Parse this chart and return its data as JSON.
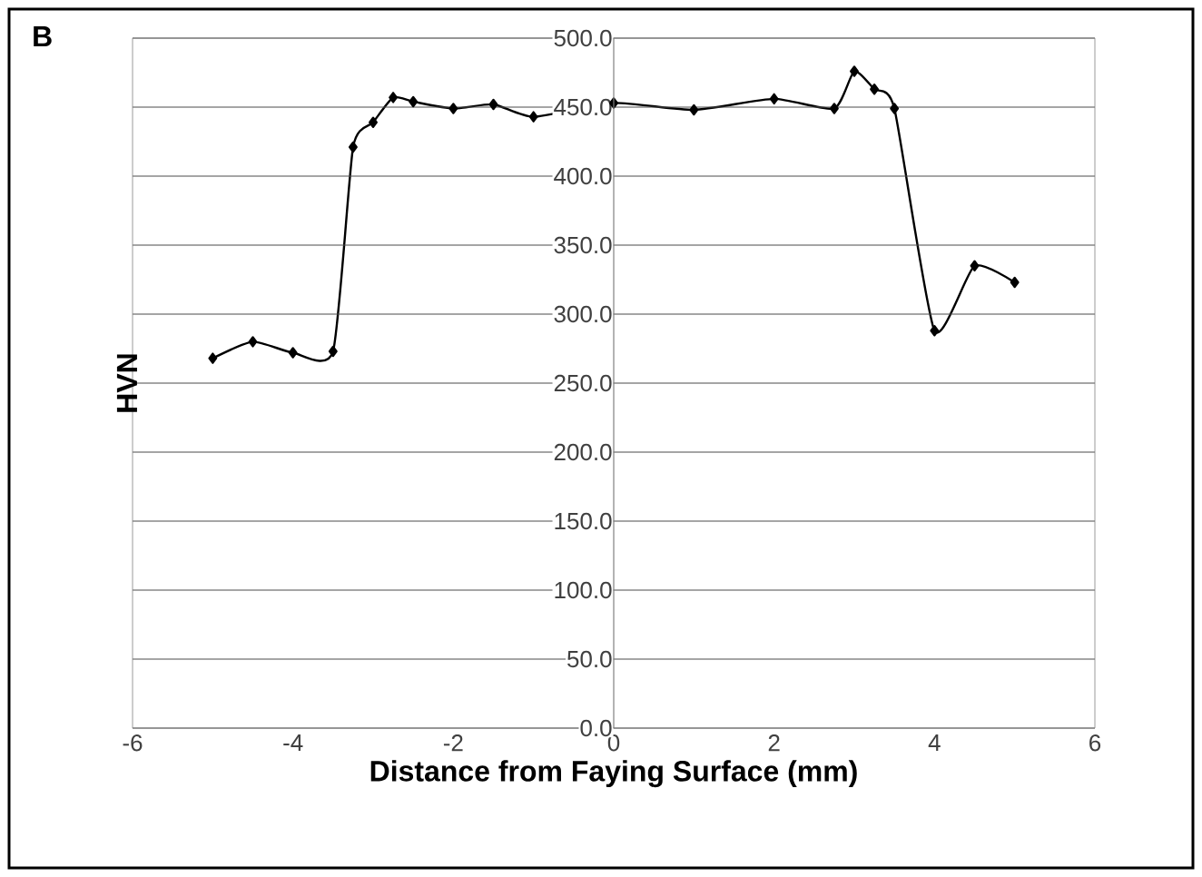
{
  "chart_data": {
    "type": "line",
    "xlabel": "Distance from Faying Surface (mm)",
    "ylabel": "HVN",
    "annotations": [
      "B"
    ],
    "x": [
      -5,
      -4.5,
      -4,
      -3.5,
      -3.25,
      -3,
      -2.75,
      -2.5,
      -2,
      -1.5,
      -1,
      0,
      1,
      2,
      2.75,
      3,
      3.25,
      3.5,
      4,
      4.5,
      5
    ],
    "series": [
      {
        "color": "#000000",
        "values": [
          268,
          280,
          272,
          273,
          421,
          439,
          457,
          454,
          449,
          452,
          443,
          453,
          448,
          456,
          449,
          476,
          463,
          449,
          288,
          335,
          323
        ]
      }
    ],
    "xlim": [
      -6,
      6
    ],
    "xticks": [
      -6,
      -4,
      -2,
      0,
      2,
      4,
      6
    ],
    "ylim": [
      0,
      500
    ],
    "yticks": [
      {
        "value": 0,
        "label": "0.0"
      },
      {
        "value": 50,
        "label": "50.0"
      },
      {
        "value": 100,
        "label": "100.0"
      },
      {
        "value": 150,
        "label": "150.0"
      },
      {
        "value": 200,
        "label": "200.0"
      },
      {
        "value": 250,
        "label": "250.0"
      },
      {
        "value": 300,
        "label": "300.0"
      },
      {
        "value": 350,
        "label": "350.0"
      },
      {
        "value": 400,
        "label": "400.0"
      },
      {
        "value": 450,
        "label": "450.0"
      },
      {
        "value": 500,
        "label": "500.0"
      }
    ],
    "grid": "y",
    "marker": "diamond",
    "line_style": "solid"
  }
}
